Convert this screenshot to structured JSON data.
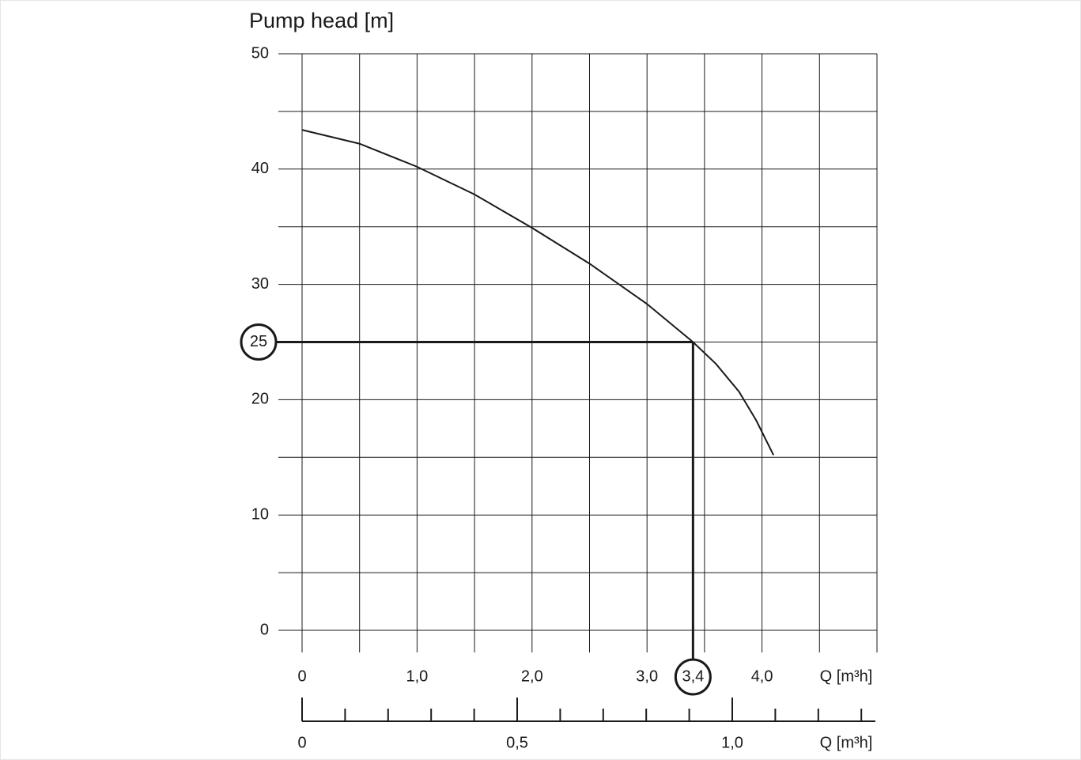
{
  "chart_data": {
    "type": "line",
    "y_label": "Pump head [m]",
    "x_label": "Q [m³h]",
    "x": [
      0,
      0.5,
      1.0,
      1.5,
      2.0,
      2.5,
      3.0,
      3.4,
      3.6,
      3.8,
      3.95,
      4.1
    ],
    "series": [
      {
        "color": "#1a1a1a",
        "values": [
          43.4,
          42.2,
          40.2,
          37.8,
          34.9,
          31.8,
          28.3,
          25.0,
          23.1,
          20.7,
          18.2,
          15.2
        ]
      }
    ],
    "xlim": [
      0,
      5.0
    ],
    "ylim": [
      0,
      50
    ],
    "xticks": [
      0,
      {
        "value": 1,
        "label": "1,0"
      },
      {
        "value": 2,
        "label": "2,0"
      },
      {
        "value": 3,
        "label": "3,0"
      },
      {
        "value": 4,
        "label": "4,0"
      }
    ],
    "yticks": [
      0,
      10,
      20,
      30,
      40,
      50
    ],
    "xgrid": [
      0,
      0.5,
      1,
      1.5,
      2,
      2.5,
      3,
      3.5,
      4,
      4.5,
      5
    ],
    "ygrid": [
      0,
      5,
      10,
      15,
      20,
      25,
      30,
      35,
      40,
      45,
      50
    ],
    "operating_point": {
      "x": {
        "value": 3.4,
        "label": "3,4"
      },
      "y": 25
    },
    "x2_label": "Q [m³h]",
    "x2lim": [
      0,
      1.34
    ],
    "x2ticks": [
      0,
      {
        "value": 0.5,
        "label": "0,5"
      },
      {
        "value": 1,
        "label": "1,0"
      }
    ],
    "x2minor": [
      0.1,
      0.2,
      0.3,
      0.4,
      0.6,
      0.7,
      0.8,
      0.9,
      1.1,
      1.2,
      1.3
    ]
  }
}
